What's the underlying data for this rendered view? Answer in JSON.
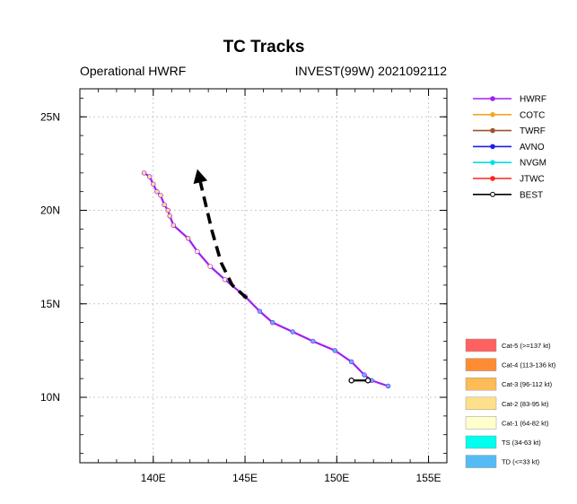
{
  "title": "TC Tracks",
  "subtitle_left": "Operational HWRF",
  "subtitle_right": "INVEST(99W) 2021092112",
  "chart_data": {
    "type": "line",
    "title": "TC Tracks",
    "xlim": [
      136,
      156
    ],
    "ylim": [
      6.5,
      26.5
    ],
    "x_ticks": [
      {
        "value": 140,
        "label": "140E"
      },
      {
        "value": 145,
        "label": "145E"
      },
      {
        "value": 150,
        "label": "150E"
      },
      {
        "value": 155,
        "label": "155E"
      }
    ],
    "y_ticks": [
      {
        "value": 10,
        "label": "10N"
      },
      {
        "value": 15,
        "label": "15N"
      },
      {
        "value": 20,
        "label": "20N"
      },
      {
        "value": 25,
        "label": "25N"
      }
    ],
    "grid": true,
    "legend_position": "right",
    "series": [
      {
        "name": "HWRF",
        "color": "#a020f0",
        "marker_color": "#a020f0"
      },
      {
        "name": "COTC",
        "color": "#f5a623",
        "marker_color": "#f5a623"
      },
      {
        "name": "TWRF",
        "color": "#a0522d",
        "marker_color": "#a0522d"
      },
      {
        "name": "AVNO",
        "color": "#1e1ee6",
        "marker_color": "#1e1ee6"
      },
      {
        "name": "NVGM",
        "color": "#00e0e0",
        "marker_color": "#00e0e0"
      },
      {
        "name": "JTWC",
        "color": "#ff2020",
        "marker_color": "#ff2020"
      },
      {
        "name": "BEST",
        "color": "#000000",
        "marker_color": "#000000"
      }
    ],
    "track": [
      {
        "lon": 152.8,
        "lat": 10.6,
        "cat": "TD"
      },
      {
        "lon": 151.9,
        "lat": 10.9,
        "cat": "TD"
      },
      {
        "lon": 151.5,
        "lat": 11.2,
        "cat": "TD"
      },
      {
        "lon": 150.8,
        "lat": 11.9,
        "cat": "TD"
      },
      {
        "lon": 149.9,
        "lat": 12.5,
        "cat": "TD"
      },
      {
        "lon": 148.7,
        "lat": 13.0,
        "cat": "TD"
      },
      {
        "lon": 147.6,
        "lat": 13.5,
        "cat": "TD"
      },
      {
        "lon": 146.5,
        "lat": 14.0,
        "cat": "TD"
      },
      {
        "lon": 145.8,
        "lat": 14.6,
        "cat": "TD"
      },
      {
        "lon": 145.0,
        "lat": 15.4,
        "cat": "Cat-2"
      },
      {
        "lon": 143.9,
        "lat": 16.3,
        "cat": "Cat-1"
      },
      {
        "lon": 143.1,
        "lat": 17.0,
        "cat": "Cat-1"
      },
      {
        "lon": 142.4,
        "lat": 17.8,
        "cat": "Cat-1"
      },
      {
        "lon": 141.9,
        "lat": 18.5,
        "cat": "Cat-2"
      },
      {
        "lon": 141.1,
        "lat": 19.2,
        "cat": "Cat-2"
      },
      {
        "lon": 140.9,
        "lat": 19.7,
        "cat": "Cat-2"
      },
      {
        "lon": 140.8,
        "lat": 20.0,
        "cat": "Cat-2"
      },
      {
        "lon": 140.6,
        "lat": 20.3,
        "cat": "Cat-2"
      },
      {
        "lon": 140.4,
        "lat": 20.8,
        "cat": "Cat-2"
      },
      {
        "lon": 140.2,
        "lat": 21.0,
        "cat": "Cat-2"
      },
      {
        "lon": 140.0,
        "lat": 21.4,
        "cat": "Cat-2"
      },
      {
        "lon": 139.8,
        "lat": 21.8,
        "cat": "Cat-2"
      },
      {
        "lon": 139.5,
        "lat": 22.0,
        "cat": "Cat-2"
      }
    ],
    "best_track": [
      {
        "lon": 150.8,
        "lat": 10.9
      },
      {
        "lon": 151.7,
        "lat": 10.9
      }
    ],
    "forecast_arrow": [
      {
        "lon": 145.1,
        "lat": 15.3
      },
      {
        "lon": 144.3,
        "lat": 16.0
      },
      {
        "lon": 143.7,
        "lat": 17.2
      },
      {
        "lon": 143.2,
        "lat": 18.9
      },
      {
        "lon": 142.4,
        "lat": 22.2
      }
    ],
    "intensity_scale": [
      {
        "label": "Cat-5 (>=137 kt)",
        "color": "#ff6060"
      },
      {
        "label": "Cat-4 (113-136 kt)",
        "color": "#ff8c33"
      },
      {
        "label": "Cat-3 (96-112 kt)",
        "color": "#ffbb55"
      },
      {
        "label": "Cat-2 (83-95 kt)",
        "color": "#ffe08a"
      },
      {
        "label": "Cat-1 (64-82 kt)",
        "color": "#ffffcc"
      },
      {
        "label": "TS (34-63 kt)",
        "color": "#00ffee"
      },
      {
        "label": "TD (<=33 kt)",
        "color": "#55bbf5"
      }
    ]
  }
}
